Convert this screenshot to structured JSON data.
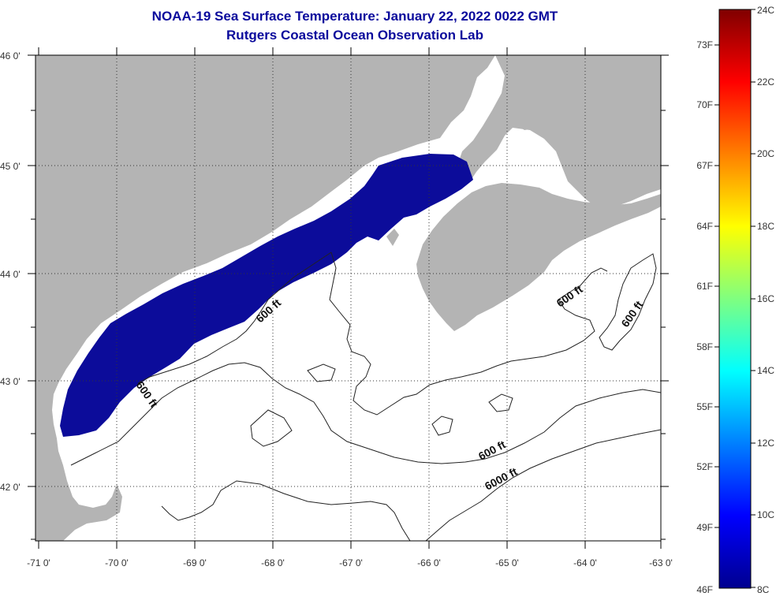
{
  "title": {
    "line1": "NOAA-19 Sea Surface Temperature:  January 22, 2022 0022 GMT",
    "line2": "Rutgers Coastal Ocean Observation Lab"
  },
  "map": {
    "lat_labels": [
      "46 0'",
      "45 0'",
      "44 0'",
      "43 0'",
      "42 0'"
    ],
    "lon_labels": [
      "-71 0'",
      "-70 0'",
      "-69 0'",
      "-68 0'",
      "-67 0'",
      "-66 0'",
      "-65 0'",
      "-64 0'",
      "-63 0'"
    ],
    "contour_labels": [
      "600 ft",
      "600 ft",
      "600 ft",
      "600 ft",
      "600 ft",
      "6000 ft"
    ],
    "colors": {
      "land": "#b4b4b4",
      "sst": "#0c0c9a",
      "ocean": "#ffffff"
    }
  },
  "colorbar": {
    "fahrenheit_labels": [
      "73F",
      "70F",
      "67F",
      "64F",
      "61F",
      "58F",
      "55F",
      "52F",
      "49F",
      "46F"
    ],
    "celsius_labels": [
      "24C",
      "22C",
      "20C",
      "18C",
      "16C",
      "14C",
      "12C",
      "10C",
      "8C"
    ],
    "range_c": [
      8,
      24
    ]
  }
}
